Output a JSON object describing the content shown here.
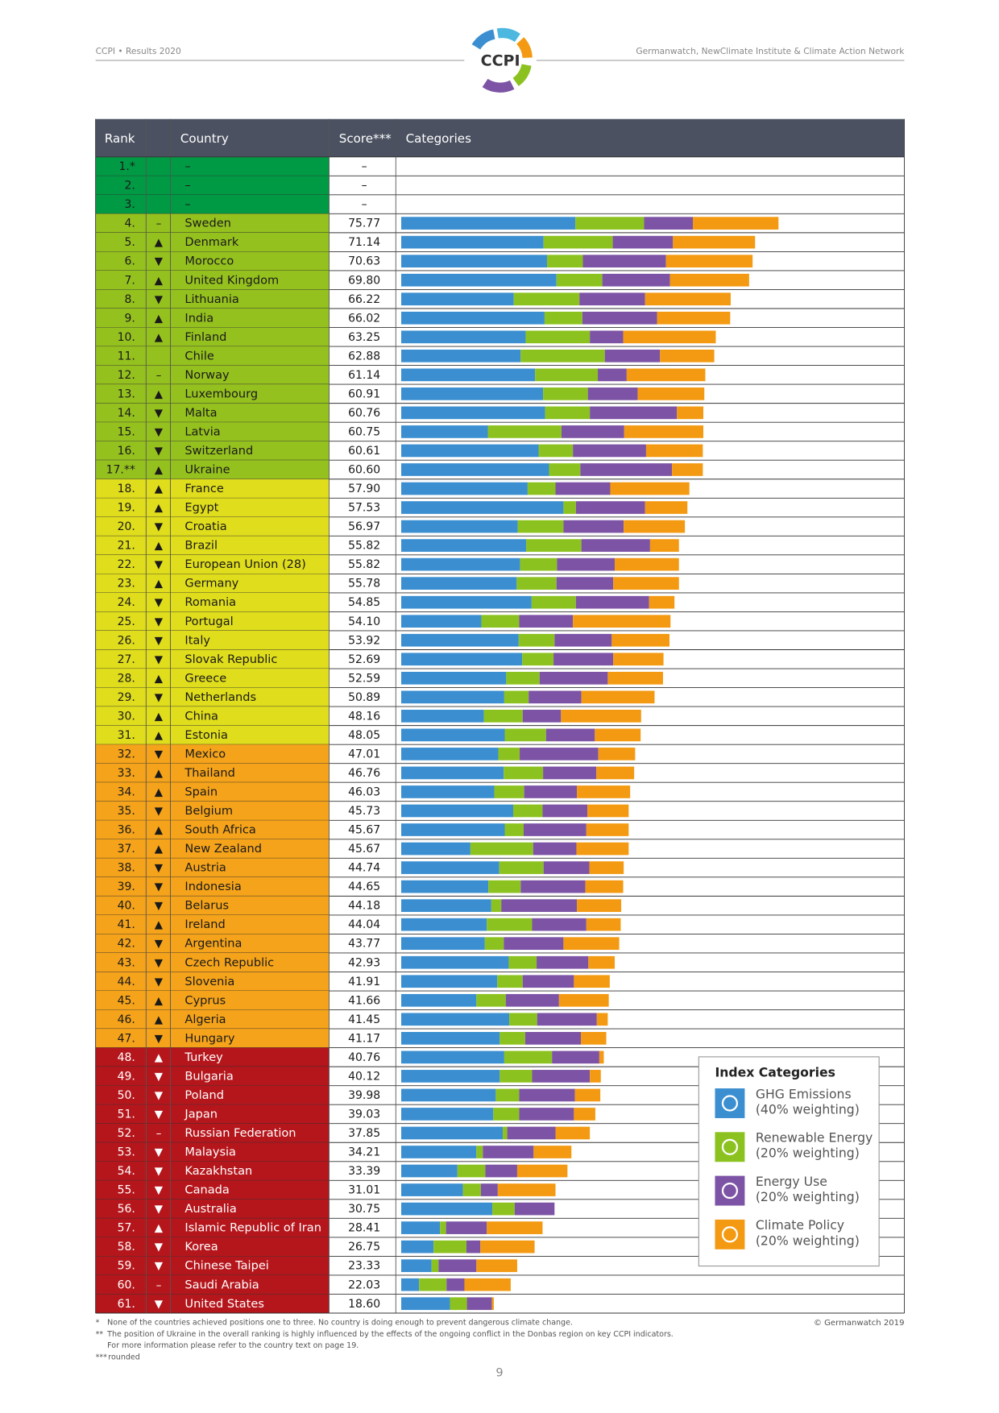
{
  "header": {
    "left": "CCPI • Results 2020",
    "right": "Germanwatch, NewClimate Institute & Climate Action Network",
    "logo": "CCPI"
  },
  "table": {
    "columns": {
      "rank": "Rank",
      "country": "Country",
      "score": "Score***",
      "categories": "Categories"
    },
    "xlim": [
      0,
      100
    ],
    "groups": [
      {
        "color": "#009a44",
        "text_color": "#1a1a1a",
        "rows": [
          {
            "rank": "1.*",
            "country": "–",
            "score": "–"
          },
          {
            "rank": "2.",
            "country": "–",
            "score": "–"
          },
          {
            "rank": "3.",
            "country": "–",
            "score": "–"
          }
        ]
      },
      {
        "color": "#95c11f",
        "text_color": "#1a1a1a",
        "rows": [
          {
            "rank": "4.",
            "trend": "–",
            "country": "Sweden",
            "score": "75.77",
            "segments": [
              35.0,
              13.8,
              9.8,
              17.2
            ]
          },
          {
            "rank": "5.",
            "trend": "▲",
            "country": "Denmark",
            "score": "71.14",
            "segments": [
              28.6,
              13.9,
              12.1,
              16.5
            ]
          },
          {
            "rank": "6.",
            "trend": "▼",
            "country": "Morocco",
            "score": "70.63",
            "segments": [
              29.3,
              7.2,
              16.7,
              17.4
            ]
          },
          {
            "rank": "7.",
            "trend": "▲",
            "country": "United Kingdom",
            "score": "69.80",
            "segments": [
              31.2,
              9.2,
              13.6,
              15.9
            ]
          },
          {
            "rank": "8.",
            "trend": "▼",
            "country": "Lithuania",
            "score": "66.22",
            "segments": [
              22.6,
              13.2,
              13.2,
              17.2
            ]
          },
          {
            "rank": "9.",
            "trend": "▲",
            "country": "India",
            "score": "66.02",
            "segments": [
              28.8,
              7.6,
              15.0,
              14.7
            ]
          },
          {
            "rank": "10.",
            "trend": "▲",
            "country": "Finland",
            "score": "63.25",
            "segments": [
              25.0,
              12.9,
              6.7,
              18.6
            ]
          },
          {
            "rank": "11.",
            "country": "Chile",
            "score": "62.88",
            "segments": [
              24.0,
              16.9,
              11.1,
              10.9
            ]
          },
          {
            "rank": "12.",
            "trend": "–",
            "country": "Norway",
            "score": "61.14",
            "segments": [
              26.9,
              12.6,
              5.8,
              15.8
            ]
          },
          {
            "rank": "13.",
            "trend": "▲",
            "country": "Luxembourg",
            "score": "60.91",
            "segments": [
              28.5,
              9.0,
              10.0,
              13.4
            ]
          },
          {
            "rank": "14.",
            "trend": "▼",
            "country": "Malta",
            "score": "60.76",
            "segments": [
              28.9,
              9.0,
              17.5,
              5.3
            ]
          },
          {
            "rank": "15.",
            "trend": "▼",
            "country": "Latvia",
            "score": "60.75",
            "segments": [
              17.4,
              14.8,
              12.6,
              15.9
            ]
          },
          {
            "rank": "16.",
            "trend": "▼",
            "country": "Switzerland",
            "score": "60.61",
            "segments": [
              27.6,
              6.9,
              14.7,
              11.4
            ]
          },
          {
            "rank": "17.**",
            "trend": "▲",
            "country": "Ukraine",
            "score": "60.60",
            "segments": [
              29.7,
              6.3,
              18.4,
              6.2
            ]
          }
        ]
      },
      {
        "color": "#e0dd1c",
        "text_color": "#1a1a1a",
        "rows": [
          {
            "rank": "18.",
            "trend": "▲",
            "country": "France",
            "score": "57.90",
            "segments": [
              25.4,
              5.6,
              11.0,
              15.9
            ]
          },
          {
            "rank": "19.",
            "trend": "▲",
            "country": "Egypt",
            "score": "57.53",
            "segments": [
              32.6,
              2.5,
              13.9,
              8.5
            ]
          },
          {
            "rank": "20.",
            "trend": "▼",
            "country": "Croatia",
            "score": "56.97",
            "segments": [
              23.4,
              9.2,
              12.1,
              12.3
            ]
          },
          {
            "rank": "21.",
            "trend": "▲",
            "country": "Brazil",
            "score": "55.82",
            "segments": [
              25.1,
              11.1,
              13.8,
              5.8
            ]
          },
          {
            "rank": "22.",
            "trend": "▼",
            "country": "European Union (28)",
            "score": "55.82",
            "segments": [
              23.9,
              7.4,
              11.6,
              12.9
            ]
          },
          {
            "rank": "23.",
            "trend": "▲",
            "country": "Germany",
            "score": "55.78",
            "segments": [
              23.2,
              8.0,
              11.4,
              13.2
            ]
          },
          {
            "rank": "24.",
            "trend": "▼",
            "country": "Romania",
            "score": "54.85",
            "segments": [
              26.2,
              8.9,
              14.7,
              5.1
            ]
          },
          {
            "rank": "25.",
            "trend": "▼",
            "country": "Portugal",
            "score": "54.10",
            "segments": [
              16.1,
              7.6,
              10.8,
              19.6
            ]
          },
          {
            "rank": "26.",
            "trend": "▼",
            "country": "Italy",
            "score": "53.92",
            "segments": [
              23.6,
              7.2,
              11.5,
              11.6
            ]
          },
          {
            "rank": "27.",
            "trend": "▼",
            "country": "Slovak Republic",
            "score": "52.69",
            "segments": [
              24.3,
              6.3,
              12.0,
              10.1
            ]
          },
          {
            "rank": "28.",
            "trend": "▲",
            "country": "Greece",
            "score": "52.59",
            "segments": [
              21.1,
              6.7,
              13.7,
              11.1
            ]
          },
          {
            "rank": "29.",
            "trend": "▼",
            "country": "Netherlands",
            "score": "50.89",
            "segments": [
              20.7,
              4.9,
              10.6,
              14.7
            ]
          },
          {
            "rank": "30.",
            "trend": "▲",
            "country": "China",
            "score": "48.16",
            "segments": [
              16.6,
              7.8,
              7.7,
              16.1
            ]
          },
          {
            "rank": "31.",
            "trend": "▲",
            "country": "Estonia",
            "score": "48.05",
            "segments": [
              20.8,
              8.3,
              9.8,
              9.2
            ]
          }
        ]
      },
      {
        "color": "#f5a31a",
        "text_color": "#1a1a1a",
        "rows": [
          {
            "rank": "32.",
            "trend": "▼",
            "country": "Mexico",
            "score": "47.01",
            "segments": [
              19.5,
              4.3,
              15.8,
              7.4
            ]
          },
          {
            "rank": "33.",
            "trend": "▲",
            "country": "Thailand",
            "score": "46.76",
            "segments": [
              20.6,
              7.9,
              10.7,
              7.6
            ]
          },
          {
            "rank": "34.",
            "trend": "▲",
            "country": "Spain",
            "score": "46.03",
            "segments": [
              18.7,
              6.0,
              10.6,
              10.7
            ]
          },
          {
            "rank": "35.",
            "trend": "▼",
            "country": "Belgium",
            "score": "45.73",
            "segments": [
              22.5,
              5.9,
              9.0,
              8.3
            ]
          },
          {
            "rank": "36.",
            "trend": "▲",
            "country": "South Africa",
            "score": "45.67",
            "segments": [
              20.8,
              3.8,
              12.6,
              8.5
            ]
          },
          {
            "rank": "37.",
            "trend": "▲",
            "country": "New Zealand",
            "score": "45.67",
            "segments": [
              13.9,
              12.6,
              8.7,
              10.5
            ]
          },
          {
            "rank": "38.",
            "trend": "▼",
            "country": "Austria",
            "score": "44.74",
            "segments": [
              19.7,
              8.9,
              9.2,
              6.9
            ]
          },
          {
            "rank": "39.",
            "trend": "▼",
            "country": "Indonesia",
            "score": "44.65",
            "segments": [
              17.5,
              6.5,
              13.0,
              7.6
            ]
          },
          {
            "rank": "40.",
            "trend": "▼",
            "country": "Belarus",
            "score": "44.18",
            "segments": [
              18.1,
              2.0,
              15.2,
              8.9
            ]
          },
          {
            "rank": "41.",
            "trend": "▲",
            "country": "Ireland",
            "score": "44.04",
            "segments": [
              17.2,
              9.1,
              10.9,
              6.9
            ]
          },
          {
            "rank": "42.",
            "trend": "▼",
            "country": "Argentina",
            "score": "43.77",
            "segments": [
              16.8,
              3.8,
              12.0,
              11.2
            ]
          },
          {
            "rank": "43.",
            "trend": "▼",
            "country": "Czech Republic",
            "score": "42.93",
            "segments": [
              21.6,
              5.6,
              10.4,
              5.3
            ]
          },
          {
            "rank": "44.",
            "trend": "▼",
            "country": "Slovenia",
            "score": "41.91",
            "segments": [
              19.3,
              5.1,
              10.3,
              7.2
            ]
          },
          {
            "rank": "45.",
            "trend": "▲",
            "country": "Cyprus",
            "score": "41.66",
            "segments": [
              15.1,
              5.9,
              10.7,
              10.0
            ]
          },
          {
            "rank": "46.",
            "trend": "▲",
            "country": "Algeria",
            "score": "41.45",
            "segments": [
              21.7,
              5.6,
              12.0,
              2.2
            ]
          },
          {
            "rank": "47.",
            "trend": "▼",
            "country": "Hungary",
            "score": "41.17",
            "segments": [
              19.8,
              5.1,
              11.2,
              5.1
            ]
          }
        ]
      },
      {
        "color": "#b5161c",
        "text_color": "#ffffff",
        "rows": [
          {
            "rank": "48.",
            "trend": "▲",
            "country": "Turkey",
            "score": "40.76",
            "segments": [
              20.7,
              9.6,
              9.5,
              0.9
            ]
          },
          {
            "rank": "49.",
            "trend": "▼",
            "country": "Bulgaria",
            "score": "40.12",
            "segments": [
              19.8,
              6.5,
              11.6,
              2.2
            ]
          },
          {
            "rank": "50.",
            "trend": "▼",
            "country": "Poland",
            "score": "39.98",
            "segments": [
              19.0,
              4.7,
              11.2,
              5.1
            ]
          },
          {
            "rank": "51.",
            "trend": "▼",
            "country": "Japan",
            "score": "39.03",
            "segments": [
              18.5,
              5.2,
              11.0,
              4.3
            ]
          },
          {
            "rank": "52.",
            "trend": "–",
            "country": "Russian Federation",
            "score": "37.85",
            "segments": [
              20.4,
              0.9,
              9.7,
              6.9
            ]
          },
          {
            "rank": "53.",
            "trend": "▼",
            "country": "Malaysia",
            "score": "34.21",
            "segments": [
              15.1,
              1.3,
              10.2,
              7.6
            ]
          },
          {
            "rank": "54.",
            "trend": "▼",
            "country": "Kazakhstan",
            "score": "33.39",
            "segments": [
              11.3,
              5.6,
              6.4,
              10.1
            ]
          },
          {
            "rank": "55.",
            "trend": "▼",
            "country": "Canada",
            "score": "31.01",
            "segments": [
              12.4,
              3.6,
              3.4,
              11.6
            ]
          },
          {
            "rank": "56.",
            "trend": "▼",
            "country": "Australia",
            "score": "30.75",
            "segments": [
              18.3,
              4.5,
              8.0,
              0
            ]
          },
          {
            "rank": "57.",
            "trend": "▲",
            "country": "Islamic Republic of Iran",
            "score": "28.41",
            "segments": [
              7.8,
              1.2,
              8.2,
              11.2
            ]
          },
          {
            "rank": "58.",
            "trend": "▼",
            "country": "Korea",
            "score": "26.75",
            "segments": [
              6.5,
              6.6,
              2.8,
              10.9
            ]
          },
          {
            "rank": "59.",
            "trend": "▼",
            "country": "Chinese Taipei",
            "score": "23.33",
            "segments": [
              6.1,
              1.4,
              7.6,
              8.2
            ]
          },
          {
            "rank": "60.",
            "trend": "–",
            "country": "Saudi Arabia",
            "score": "22.03",
            "segments": [
              3.6,
              5.5,
              3.6,
              9.3
            ]
          },
          {
            "rank": "61.",
            "trend": "▼",
            "country": "United States",
            "score": "18.60",
            "segments": [
              9.8,
              3.4,
              5.0,
              0.4
            ]
          }
        ]
      }
    ]
  },
  "legend": {
    "title": "Index Categories",
    "items": [
      {
        "name": "GHG Emissions",
        "weighting": "(40% weighting)",
        "color": "#3b8fd1"
      },
      {
        "name": "Renewable Energy",
        "weighting": "(20% weighting)",
        "color": "#8cc21f"
      },
      {
        "name": "Energy Use",
        "weighting": "(20% weighting)",
        "color": "#7d54a5"
      },
      {
        "name": "Climate Policy",
        "weighting": "(20% weighting)",
        "color": "#f39a12"
      }
    ]
  },
  "footnotes": [
    {
      "mark": "*",
      "lines": [
        "None of the countries achieved positions one to three. No country is doing enough to prevent dangerous climate change."
      ]
    },
    {
      "mark": "**",
      "lines": [
        "The position of Ukraine in the overall ranking is highly influenced by the effects of the ongoing conflict in the Donbas region on key CCPI indicators.",
        "For more information please refer to the country text on page 19."
      ]
    },
    {
      "mark": "***",
      "lines": [
        "rounded"
      ]
    }
  ],
  "copyright": "© Germanwatch 2019",
  "page_number": "9"
}
